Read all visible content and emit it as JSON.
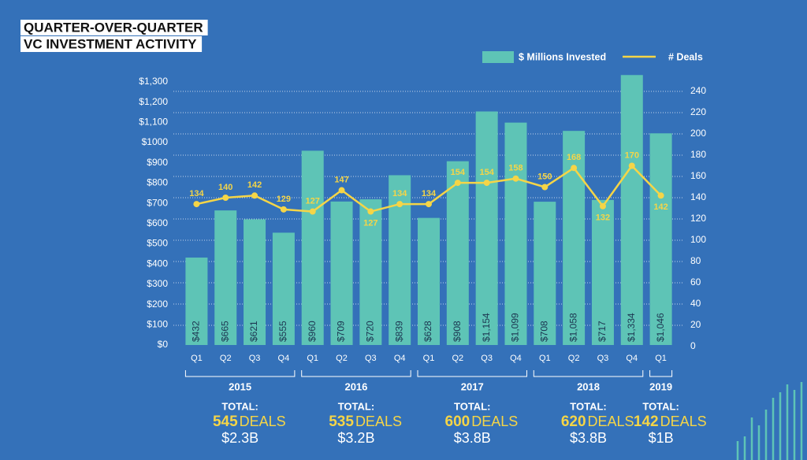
{
  "chart_data": {
    "type": "combo",
    "title_line1": "QUARTER-OVER-QUARTER",
    "title_line2": "VC INVESTMENT ACTIVITY",
    "categories": [
      "Q1",
      "Q2",
      "Q3",
      "Q4",
      "Q1",
      "Q2",
      "Q3",
      "Q4",
      "Q1",
      "Q2",
      "Q3",
      "Q4",
      "Q1",
      "Q2",
      "Q3",
      "Q4",
      "Q1"
    ],
    "series": [
      {
        "name": "$ Millions Invested",
        "type": "bar",
        "color": "#5ec4b6",
        "values": [
          432,
          665,
          621,
          555,
          960,
          709,
          720,
          839,
          628,
          908,
          1154,
          1099,
          708,
          1058,
          717,
          1334,
          1046
        ],
        "value_labels": [
          "$432",
          "$665",
          "$621",
          "$555",
          "$960",
          "$709",
          "$720",
          "$839",
          "$628",
          "$908",
          "$1,154",
          "$1,099",
          "$708",
          "$1,058",
          "$717",
          "$1,334",
          "$1,046"
        ]
      },
      {
        "name": "# Deals",
        "type": "line",
        "color": "#f5d547",
        "axis": "y2",
        "values": [
          134,
          140,
          142,
          129,
          127,
          147,
          127,
          134,
          134,
          154,
          154,
          158,
          150,
          168,
          132,
          170,
          142
        ]
      }
    ],
    "ylim": [
      0,
      1300
    ],
    "yticks": [
      {
        "value": 0,
        "label": "$0"
      },
      {
        "value": 100,
        "label": "$100"
      },
      {
        "value": 200,
        "label": "$200"
      },
      {
        "value": 300,
        "label": "$300"
      },
      {
        "value": 400,
        "label": "$400"
      },
      {
        "value": 500,
        "label": "$500"
      },
      {
        "value": 600,
        "label": "$600"
      },
      {
        "value": 700,
        "label": "$700"
      },
      {
        "value": 800,
        "label": "$800"
      },
      {
        "value": 900,
        "label": "$900"
      },
      {
        "value": 1000,
        "label": "$1000"
      },
      {
        "value": 1100,
        "label": "$1,100"
      },
      {
        "value": 1200,
        "label": "$1,200"
      },
      {
        "value": 1300,
        "label": "$1,300"
      }
    ],
    "y2lim": [
      0,
      240
    ],
    "y2ticks": [
      0,
      20,
      40,
      60,
      80,
      100,
      120,
      140,
      160,
      180,
      200,
      220,
      240
    ],
    "grid": true,
    "groups": [
      {
        "year": "2015",
        "first": 0,
        "last": 3,
        "total_label": "TOTAL:",
        "deals": 545,
        "deals_unit": "DEALS",
        "invested": "$2.3B"
      },
      {
        "year": "2016",
        "first": 4,
        "last": 7,
        "total_label": "TOTAL:",
        "deals": 535,
        "deals_unit": "DEALS",
        "invested": "$3.2B"
      },
      {
        "year": "2017",
        "first": 8,
        "last": 11,
        "total_label": "TOTAL:",
        "deals": 600,
        "deals_unit": "DEALS",
        "invested": "$3.8B"
      },
      {
        "year": "2018",
        "first": 12,
        "last": 15,
        "total_label": "TOTAL:",
        "deals": 620,
        "deals_unit": "DEALS",
        "invested": "$3.8B"
      },
      {
        "year": "2019",
        "first": 16,
        "last": 16,
        "total_label": "TOTAL:",
        "deals": 142,
        "deals_unit": "DEALS",
        "invested": "$1B"
      }
    ]
  }
}
